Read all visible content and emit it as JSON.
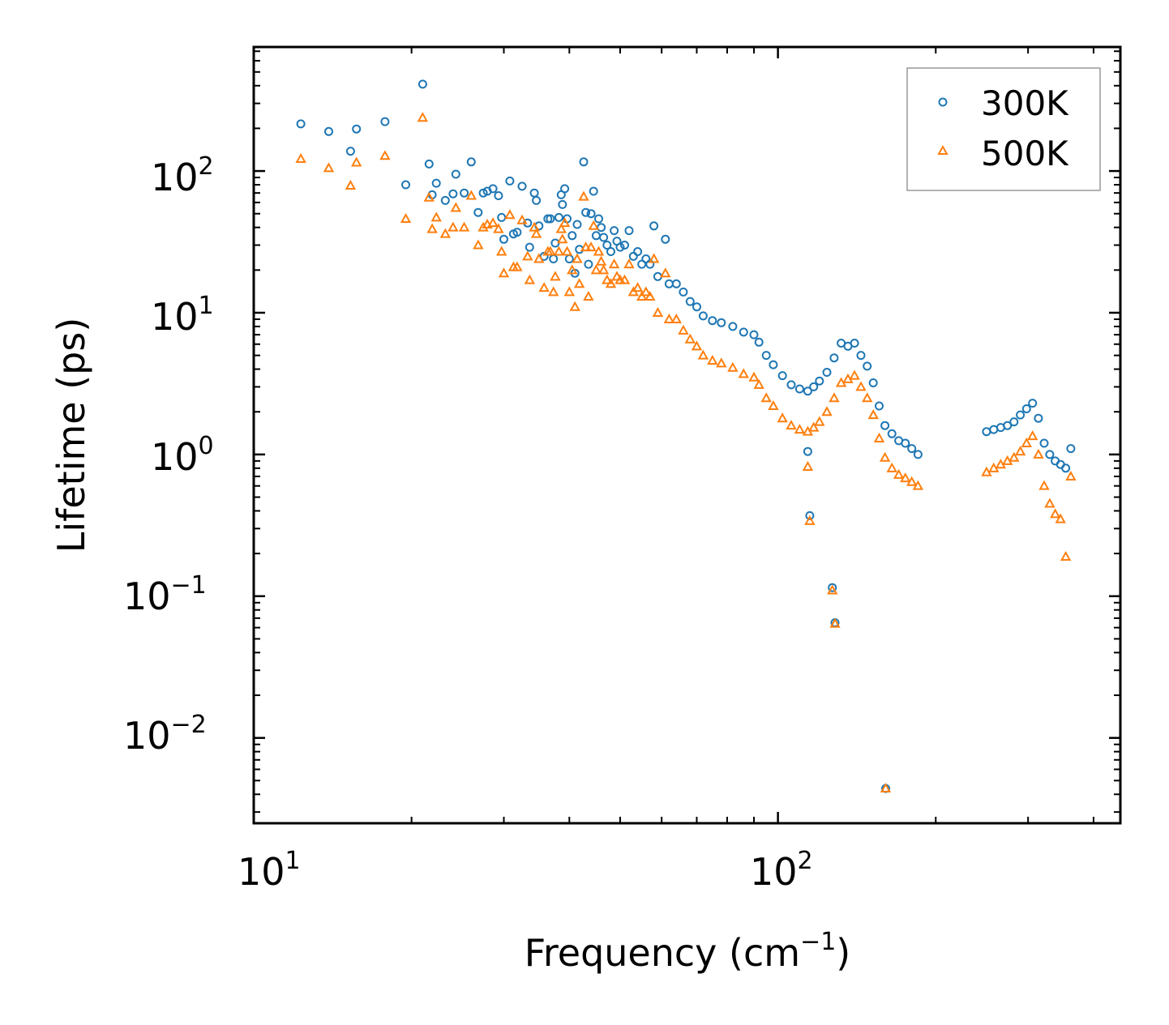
{
  "chart_data": {
    "type": "scatter",
    "xscale": "log",
    "yscale": "log",
    "xlim": [
      10,
      450
    ],
    "ylim": [
      0.0025,
      750
    ],
    "xlabel": {
      "main": "Frequency (cm",
      "sup": "−1",
      "tail": ")"
    },
    "ylabel": "Lifetime (ps)",
    "x_ticks": [
      {
        "value": 10,
        "base": "10",
        "exp": "1"
      },
      {
        "value": 100,
        "base": "10",
        "exp": "2"
      }
    ],
    "y_ticks": [
      {
        "value": 100,
        "base": "10",
        "exp": "2"
      },
      {
        "value": 10,
        "base": "10",
        "exp": "1"
      },
      {
        "value": 1,
        "base": "10",
        "exp": "0"
      },
      {
        "value": 0.1,
        "base": "10",
        "exp": "−1"
      },
      {
        "value": 0.01,
        "base": "10",
        "exp": "−2"
      }
    ],
    "legend_position": "top-right",
    "series": [
      {
        "name": "300K",
        "marker": "circle",
        "color": "#1f77b4",
        "points": [
          [
            12.3,
            215
          ],
          [
            13.9,
            190
          ],
          [
            15.3,
            138
          ],
          [
            15.7,
            198
          ],
          [
            17.8,
            223
          ],
          [
            19.5,
            80
          ],
          [
            21.0,
            410
          ],
          [
            21.6,
            112
          ],
          [
            21.9,
            68
          ],
          [
            22.3,
            82
          ],
          [
            23.2,
            62
          ],
          [
            24.0,
            69
          ],
          [
            24.3,
            95
          ],
          [
            25.2,
            70
          ],
          [
            26.0,
            116
          ],
          [
            26.8,
            51
          ],
          [
            27.4,
            70
          ],
          [
            27.9,
            72
          ],
          [
            28.6,
            75
          ],
          [
            29.3,
            67
          ],
          [
            29.7,
            47
          ],
          [
            30.0,
            33
          ],
          [
            30.8,
            85
          ],
          [
            31.3,
            36
          ],
          [
            31.8,
            37
          ],
          [
            32.5,
            78
          ],
          [
            33.3,
            43
          ],
          [
            33.6,
            29
          ],
          [
            34.3,
            70
          ],
          [
            34.6,
            62
          ],
          [
            35.0,
            41
          ],
          [
            35.8,
            25
          ],
          [
            36.4,
            46
          ],
          [
            36.8,
            46
          ],
          [
            37.3,
            24
          ],
          [
            37.6,
            31
          ],
          [
            38.2,
            47
          ],
          [
            38.6,
            68
          ],
          [
            38.8,
            58
          ],
          [
            39.2,
            75
          ],
          [
            39.6,
            46
          ],
          [
            40.0,
            24
          ],
          [
            40.5,
            35
          ],
          [
            41.0,
            19
          ],
          [
            41.4,
            42
          ],
          [
            41.8,
            28
          ],
          [
            42.6,
            116
          ],
          [
            43.0,
            51
          ],
          [
            43.5,
            22
          ],
          [
            44.0,
            50
          ],
          [
            44.5,
            72
          ],
          [
            45.0,
            35
          ],
          [
            45.5,
            46
          ],
          [
            46.0,
            40
          ],
          [
            46.5,
            34
          ],
          [
            47.2,
            30
          ],
          [
            48.0,
            27
          ],
          [
            48.7,
            38
          ],
          [
            49.3,
            32
          ],
          [
            50.0,
            29
          ],
          [
            51.0,
            30
          ],
          [
            52.0,
            38
          ],
          [
            53.0,
            25
          ],
          [
            54.0,
            27
          ],
          [
            55.0,
            22
          ],
          [
            56.0,
            24
          ],
          [
            57.0,
            22
          ],
          [
            58.0,
            41
          ],
          [
            59.0,
            18
          ],
          [
            61.0,
            33
          ],
          [
            62.0,
            16
          ],
          [
            64.0,
            16
          ],
          [
            66.0,
            14
          ],
          [
            68.0,
            12
          ],
          [
            70.0,
            11
          ],
          [
            72.0,
            9.5
          ],
          [
            75.0,
            8.8
          ],
          [
            78.0,
            8.5
          ],
          [
            82.0,
            8.0
          ],
          [
            86.0,
            7.3
          ],
          [
            90.0,
            7.0
          ],
          [
            92.0,
            6.2
          ],
          [
            95.0,
            5.0
          ],
          [
            98.0,
            4.3
          ],
          [
            102.0,
            3.6
          ],
          [
            106.0,
            3.1
          ],
          [
            110.0,
            2.9
          ],
          [
            114.0,
            2.8
          ],
          [
            117.0,
            3.0
          ],
          [
            120.0,
            3.3
          ],
          [
            124.0,
            3.8
          ],
          [
            128.0,
            4.8
          ],
          [
            132.0,
            6.1
          ],
          [
            136.0,
            5.8
          ],
          [
            140.0,
            6.1
          ],
          [
            144.0,
            5.0
          ],
          [
            148.0,
            4.2
          ],
          [
            152.0,
            3.2
          ],
          [
            156.0,
            2.2
          ],
          [
            160.0,
            1.6
          ],
          [
            165.0,
            1.4
          ],
          [
            170.0,
            1.25
          ],
          [
            175.0,
            1.2
          ],
          [
            180.0,
            1.1
          ],
          [
            185.0,
            1.0
          ],
          [
            114.0,
            1.05
          ],
          [
            115.0,
            0.37
          ],
          [
            127.0,
            0.115
          ],
          [
            128.5,
            0.065
          ],
          [
            160.5,
            0.0044
          ],
          [
            250.0,
            1.45
          ],
          [
            258.0,
            1.5
          ],
          [
            266.0,
            1.55
          ],
          [
            274.0,
            1.6
          ],
          [
            282.0,
            1.7
          ],
          [
            290.0,
            1.9
          ],
          [
            298.0,
            2.1
          ],
          [
            306.0,
            2.3
          ],
          [
            314.0,
            1.8
          ],
          [
            322.0,
            1.2
          ],
          [
            330.0,
            1.0
          ],
          [
            338.0,
            0.9
          ],
          [
            346.0,
            0.85
          ],
          [
            354.0,
            0.8
          ],
          [
            362.0,
            1.1
          ]
        ]
      },
      {
        "name": "500K",
        "marker": "triangle",
        "color": "#ff7f0e",
        "points": [
          [
            12.3,
            122
          ],
          [
            13.9,
            105
          ],
          [
            15.3,
            79
          ],
          [
            15.7,
            115
          ],
          [
            17.8,
            128
          ],
          [
            19.5,
            46
          ],
          [
            21.0,
            238
          ],
          [
            21.6,
            65
          ],
          [
            21.9,
            39
          ],
          [
            22.3,
            47
          ],
          [
            23.2,
            36
          ],
          [
            24.0,
            40
          ],
          [
            24.3,
            55
          ],
          [
            25.2,
            40
          ],
          [
            26.0,
            67
          ],
          [
            26.8,
            30
          ],
          [
            27.4,
            40
          ],
          [
            27.9,
            42
          ],
          [
            28.6,
            43
          ],
          [
            29.3,
            39
          ],
          [
            29.7,
            27
          ],
          [
            30.0,
            19
          ],
          [
            30.8,
            49
          ],
          [
            31.3,
            21
          ],
          [
            31.8,
            21
          ],
          [
            32.5,
            45
          ],
          [
            33.3,
            25
          ],
          [
            33.6,
            17
          ],
          [
            34.3,
            40
          ],
          [
            34.6,
            36
          ],
          [
            35.0,
            24
          ],
          [
            35.8,
            15
          ],
          [
            36.4,
            27
          ],
          [
            36.8,
            27
          ],
          [
            37.3,
            14
          ],
          [
            37.6,
            18
          ],
          [
            38.2,
            27
          ],
          [
            38.6,
            39
          ],
          [
            38.8,
            33
          ],
          [
            39.2,
            43
          ],
          [
            39.6,
            27
          ],
          [
            40.0,
            14
          ],
          [
            40.5,
            20
          ],
          [
            41.0,
            11
          ],
          [
            41.4,
            24
          ],
          [
            41.8,
            16
          ],
          [
            42.6,
            66
          ],
          [
            43.0,
            29
          ],
          [
            43.5,
            13
          ],
          [
            44.0,
            29
          ],
          [
            44.5,
            41
          ],
          [
            45.0,
            20
          ],
          [
            45.5,
            27
          ],
          [
            46.0,
            23
          ],
          [
            46.5,
            20
          ],
          [
            47.2,
            17
          ],
          [
            48.0,
            16
          ],
          [
            48.7,
            22
          ],
          [
            49.3,
            18
          ],
          [
            50.0,
            17
          ],
          [
            51.0,
            17
          ],
          [
            52.0,
            22
          ],
          [
            53.0,
            14
          ],
          [
            54.0,
            15
          ],
          [
            55.0,
            13
          ],
          [
            56.0,
            14
          ],
          [
            57.0,
            13
          ],
          [
            58.0,
            24
          ],
          [
            59.0,
            10
          ],
          [
            61.0,
            19
          ],
          [
            62.0,
            9
          ],
          [
            64.0,
            9
          ],
          [
            66.0,
            7.5
          ],
          [
            68.0,
            6.5
          ],
          [
            70.0,
            5.8
          ],
          [
            72.0,
            5.0
          ],
          [
            75.0,
            4.6
          ],
          [
            78.0,
            4.4
          ],
          [
            82.0,
            4.1
          ],
          [
            86.0,
            3.7
          ],
          [
            90.0,
            3.5
          ],
          [
            92.0,
            3.1
          ],
          [
            95.0,
            2.5
          ],
          [
            98.0,
            2.2
          ],
          [
            102.0,
            1.8
          ],
          [
            106.0,
            1.6
          ],
          [
            110.0,
            1.5
          ],
          [
            114.0,
            1.45
          ],
          [
            117.0,
            1.55
          ],
          [
            120.0,
            1.7
          ],
          [
            124.0,
            2.0
          ],
          [
            128.0,
            2.5
          ],
          [
            132.0,
            3.2
          ],
          [
            136.0,
            3.4
          ],
          [
            140.0,
            3.6
          ],
          [
            144.0,
            3.0
          ],
          [
            148.0,
            2.5
          ],
          [
            152.0,
            1.9
          ],
          [
            156.0,
            1.3
          ],
          [
            160.0,
            0.95
          ],
          [
            165.0,
            0.8
          ],
          [
            170.0,
            0.72
          ],
          [
            175.0,
            0.68
          ],
          [
            180.0,
            0.64
          ],
          [
            185.0,
            0.6
          ],
          [
            114.0,
            0.82
          ],
          [
            115.0,
            0.34
          ],
          [
            127.0,
            0.11
          ],
          [
            128.5,
            0.064
          ],
          [
            160.5,
            0.0044
          ],
          [
            250.0,
            0.75
          ],
          [
            258.0,
            0.8
          ],
          [
            266.0,
            0.85
          ],
          [
            274.0,
            0.9
          ],
          [
            282.0,
            0.95
          ],
          [
            290.0,
            1.05
          ],
          [
            298.0,
            1.2
          ],
          [
            306.0,
            1.35
          ],
          [
            314.0,
            1.0
          ],
          [
            322.0,
            0.6
          ],
          [
            330.0,
            0.45
          ],
          [
            338.0,
            0.38
          ],
          [
            346.0,
            0.35
          ],
          [
            354.0,
            0.19
          ],
          [
            362.0,
            0.7
          ]
        ]
      }
    ]
  }
}
